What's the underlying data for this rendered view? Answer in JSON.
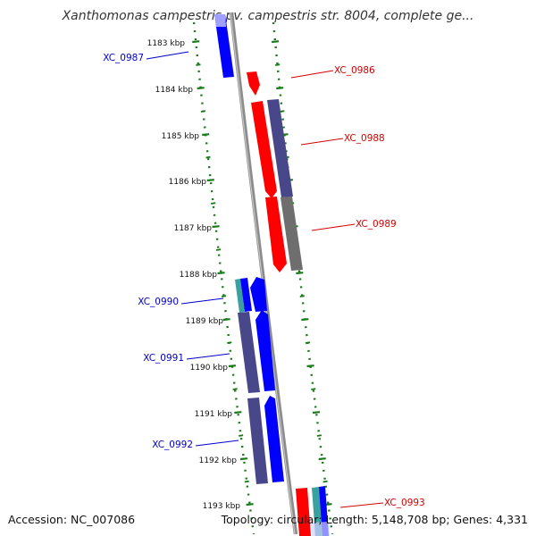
{
  "title": "Xanthomonas campestris pv. campestris str. 8004, complete ge...",
  "footer": {
    "accession": "Accession: NC_007086",
    "summary": "Topology: circular; Length: 5,148,708 bp; Genes: 4,331"
  },
  "colors": {
    "forward_label": "#d40000",
    "reverse_label": "#0000cc",
    "backbone": "#8c8c8c",
    "tick": "#1a7a1a",
    "gene_red": "#ff0000",
    "gene_blue": "#0000ff",
    "gene_indigo": "#47478a",
    "gene_gray": "#6e6e6e",
    "gene_teal": "#3aa0a0"
  },
  "kbp_labels": [
    "1183 kbp",
    "1184 kbp",
    "1185 kbp",
    "1186 kbp",
    "1187 kbp",
    "1188 kbp",
    "1189 kbp",
    "1190 kbp",
    "1191 kbp",
    "1192 kbp",
    "1193 kbp"
  ],
  "gene_labels": [
    {
      "text": "XC_0987",
      "strand": "reverse"
    },
    {
      "text": "XC_0986",
      "strand": "forward"
    },
    {
      "text": "XC_0988",
      "strand": "forward"
    },
    {
      "text": "XC_0989",
      "strand": "forward"
    },
    {
      "text": "XC_0990",
      "strand": "reverse"
    },
    {
      "text": "XC_0991",
      "strand": "reverse"
    },
    {
      "text": "XC_0992",
      "strand": "reverse"
    },
    {
      "text": "XC_0993",
      "strand": "forward"
    }
  ]
}
